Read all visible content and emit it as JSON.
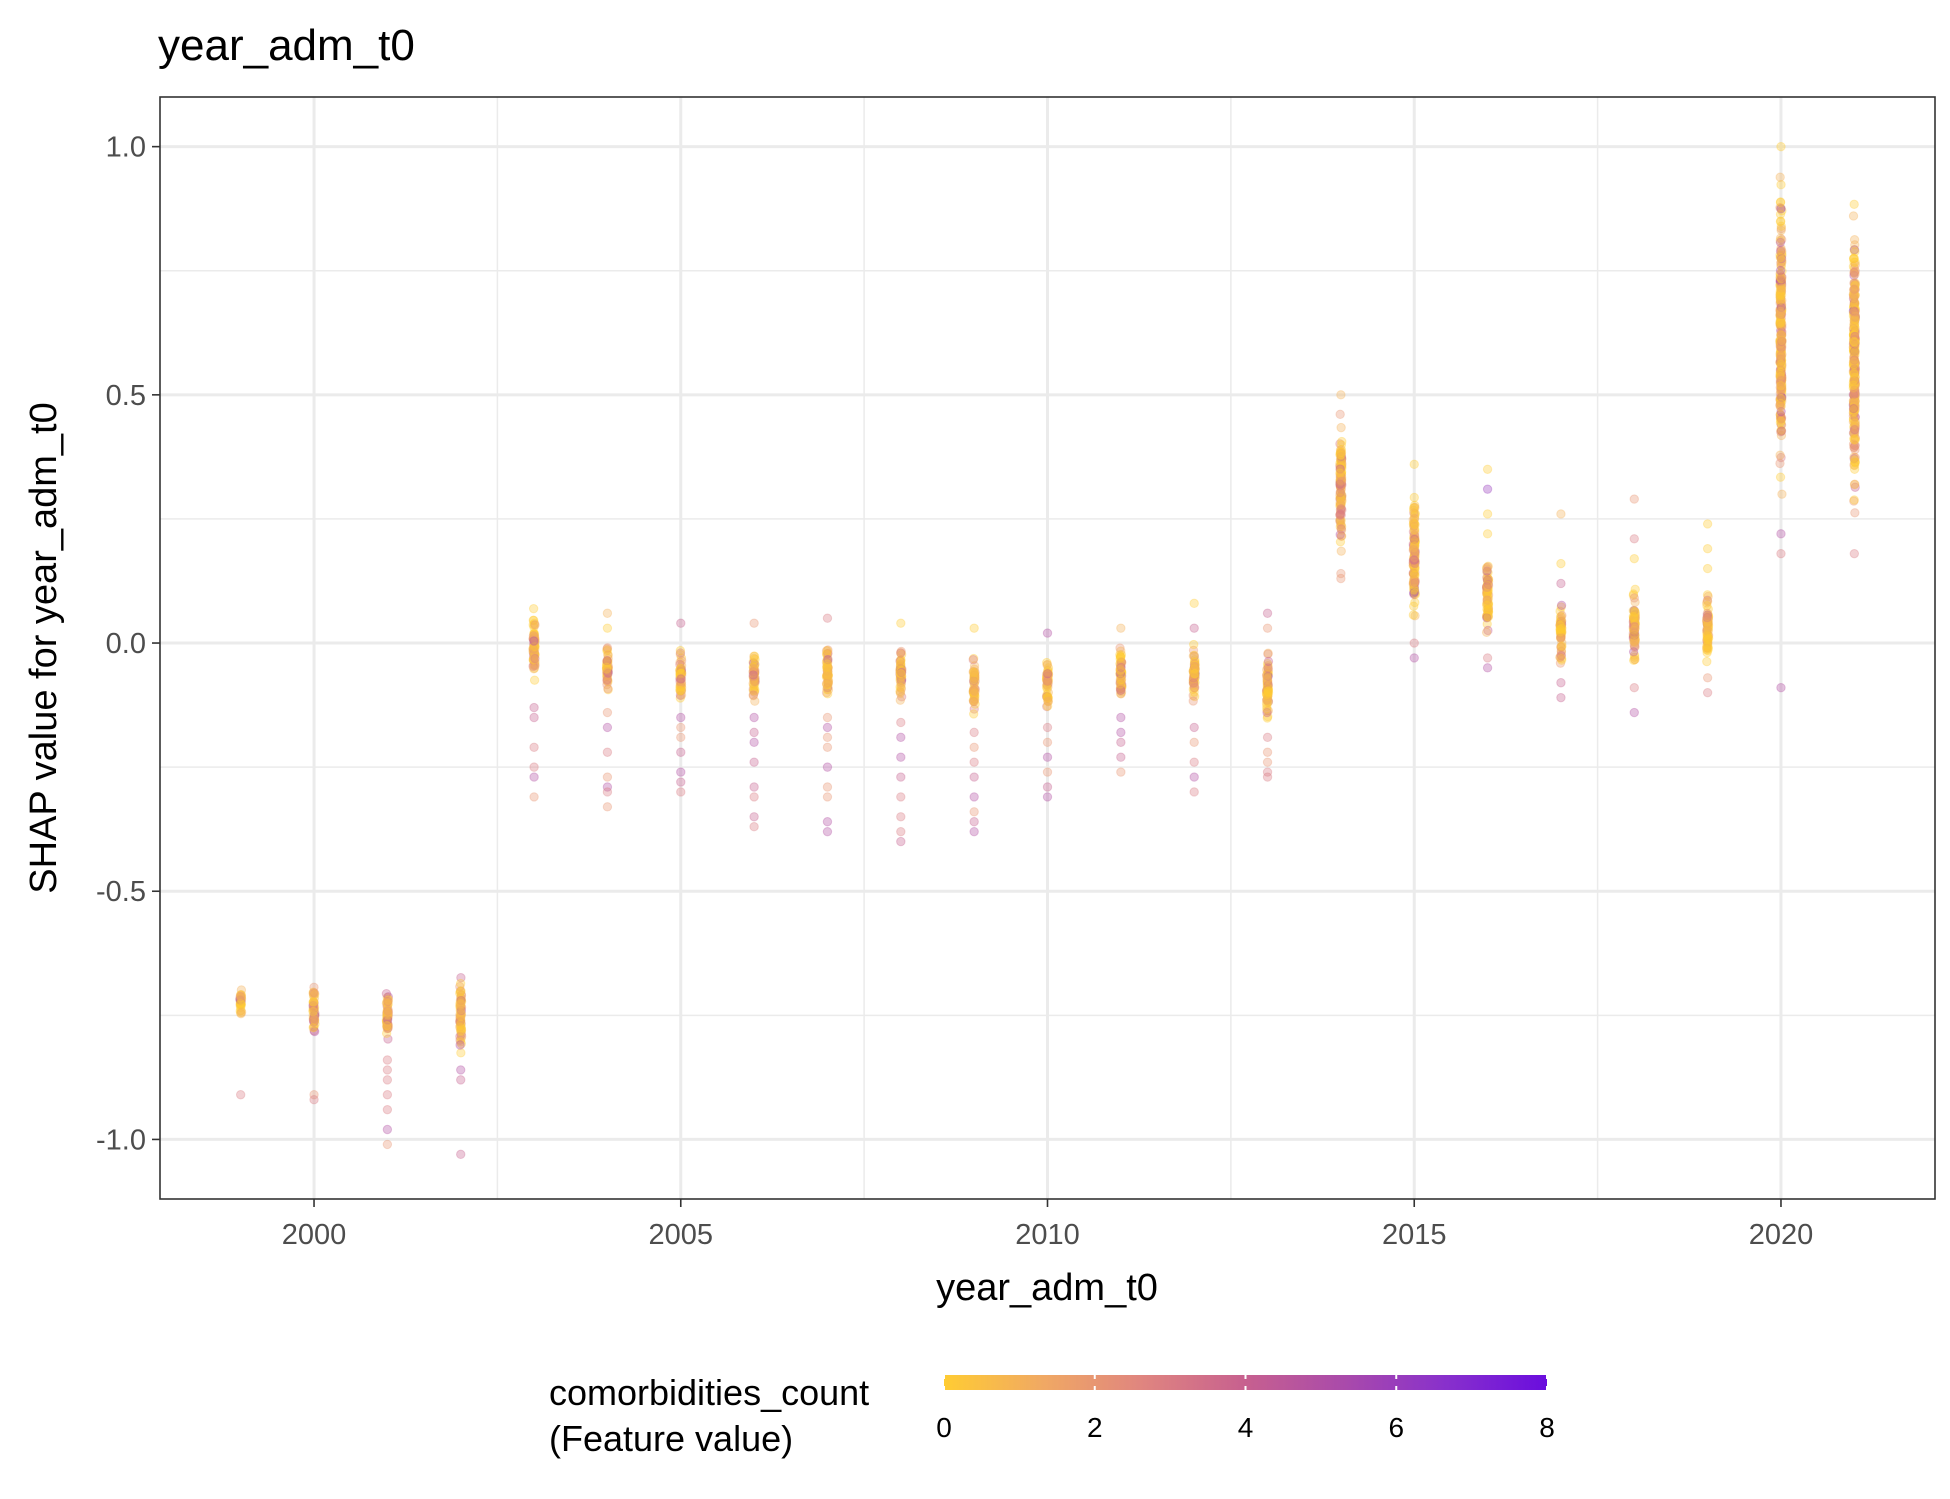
{
  "chart_data": {
    "type": "scatter",
    "title": "year_adm_t0",
    "xlabel": "year_adm_t0",
    "ylabel": "SHAP value for year_adm_t0",
    "xlim": [
      1997.9,
      2022.1
    ],
    "ylim": [
      -1.12,
      1.1
    ],
    "x_ticks": [
      2000,
      2005,
      2010,
      2015,
      2020
    ],
    "x_tick_labels": [
      "2000",
      "2005",
      "2010",
      "2015",
      "2020"
    ],
    "y_ticks": [
      -1.0,
      -0.5,
      0.0,
      0.5,
      1.0
    ],
    "y_tick_labels": [
      "-1.0",
      "-0.5",
      "0.0",
      "0.5",
      "1.0"
    ],
    "grid": true,
    "point_opacity": 0.35,
    "legend": {
      "position": "bottom",
      "title_line1": "comorbidities_count",
      "title_line2": "(Feature value)",
      "min": 0,
      "max": 8,
      "ticks": [
        "0",
        "2",
        "4",
        "6",
        "8"
      ],
      "colors": [
        "#ffcc33",
        "#f0a864",
        "#df8480",
        "#c7608f",
        "#a94aab",
        "#8830cc",
        "#6a0dde"
      ]
    },
    "groups": [
      {
        "x": 1999,
        "y_min": -0.76,
        "y_max": -0.69,
        "outliers": [
          -0.91
        ]
      },
      {
        "x": 2000,
        "y_min": -0.8,
        "y_max": -0.68,
        "outliers": [
          -0.91,
          -0.92
        ]
      },
      {
        "x": 2001,
        "y_min": -0.82,
        "y_max": -0.68,
        "outliers": [
          -0.84,
          -0.86,
          -0.88,
          -0.91,
          -0.94,
          -0.98,
          -1.01
        ]
      },
      {
        "x": 2002,
        "y_min": -0.83,
        "y_max": -0.66,
        "outliers": [
          -0.86,
          -0.88,
          -1.03
        ]
      },
      {
        "x": 2003,
        "y_min": -0.09,
        "y_max": 0.08,
        "outliers": [
          -0.13,
          -0.15,
          -0.21,
          -0.25,
          -0.27,
          -0.31
        ]
      },
      {
        "x": 2004,
        "y_min": -0.11,
        "y_max": 0.01,
        "outliers": [
          0.03,
          0.06,
          -0.14,
          -0.17,
          -0.22,
          -0.27,
          -0.29,
          -0.3,
          -0.33
        ]
      },
      {
        "x": 2005,
        "y_min": -0.13,
        "y_max": 0.0,
        "outliers": [
          0.04,
          -0.15,
          -0.17,
          -0.19,
          -0.22,
          -0.26,
          -0.28,
          -0.3
        ]
      },
      {
        "x": 2006,
        "y_min": -0.13,
        "y_max": 0.0,
        "outliers": [
          0.04,
          -0.15,
          -0.18,
          -0.2,
          -0.24,
          -0.29,
          -0.31,
          -0.35,
          -0.37
        ]
      },
      {
        "x": 2007,
        "y_min": -0.13,
        "y_max": 0.01,
        "outliers": [
          0.05,
          -0.15,
          -0.17,
          -0.19,
          -0.21,
          -0.25,
          -0.29,
          -0.31,
          -0.36,
          -0.38
        ]
      },
      {
        "x": 2008,
        "y_min": -0.14,
        "y_max": 0.0,
        "outliers": [
          0.04,
          -0.16,
          -0.19,
          -0.23,
          -0.27,
          -0.31,
          -0.35,
          -0.38,
          -0.4
        ]
      },
      {
        "x": 2009,
        "y_min": -0.16,
        "y_max": -0.02,
        "outliers": [
          0.03,
          -0.18,
          -0.21,
          -0.24,
          -0.27,
          -0.31,
          -0.34,
          -0.36,
          -0.38
        ]
      },
      {
        "x": 2010,
        "y_min": -0.15,
        "y_max": -0.02,
        "outliers": [
          0.02,
          -0.17,
          -0.2,
          -0.23,
          -0.26,
          -0.29,
          -0.31
        ]
      },
      {
        "x": 2011,
        "y_min": -0.13,
        "y_max": 0.01,
        "outliers": [
          0.03,
          -0.15,
          -0.18,
          -0.2,
          -0.23,
          -0.26
        ]
      },
      {
        "x": 2012,
        "y_min": -0.14,
        "y_max": 0.01,
        "outliers": [
          0.03,
          0.08,
          -0.17,
          -0.2,
          -0.24,
          -0.27,
          -0.3
        ]
      },
      {
        "x": 2013,
        "y_min": -0.17,
        "y_max": 0.0,
        "outliers": [
          0.03,
          0.06,
          -0.19,
          -0.22,
          -0.24,
          -0.26,
          -0.27
        ]
      },
      {
        "x": 2014,
        "y_min": 0.16,
        "y_max": 0.48,
        "outliers": [
          0.5,
          0.14,
          0.13
        ]
      },
      {
        "x": 2015,
        "y_min": 0.02,
        "y_max": 0.33,
        "outliers": [
          0.36,
          0.0,
          -0.03
        ]
      },
      {
        "x": 2016,
        "y_min": 0.0,
        "y_max": 0.19,
        "outliers": [
          0.22,
          0.26,
          0.31,
          0.35,
          -0.03,
          -0.05
        ]
      },
      {
        "x": 2017,
        "y_min": -0.06,
        "y_max": 0.09,
        "outliers": [
          0.12,
          0.16,
          0.26,
          -0.08,
          -0.11
        ]
      },
      {
        "x": 2018,
        "y_min": -0.06,
        "y_max": 0.13,
        "outliers": [
          0.17,
          0.21,
          0.29,
          -0.09,
          -0.14
        ]
      },
      {
        "x": 2019,
        "y_min": -0.05,
        "y_max": 0.12,
        "outliers": [
          0.15,
          0.19,
          0.24,
          -0.07,
          -0.1
        ]
      },
      {
        "x": 2020,
        "y_min": 0.27,
        "y_max": 0.97,
        "outliers": [
          1.0,
          0.22,
          0.18,
          -0.09
        ]
      },
      {
        "x": 2021,
        "y_min": 0.21,
        "y_max": 0.95,
        "outliers": [
          0.18
        ]
      }
    ]
  }
}
